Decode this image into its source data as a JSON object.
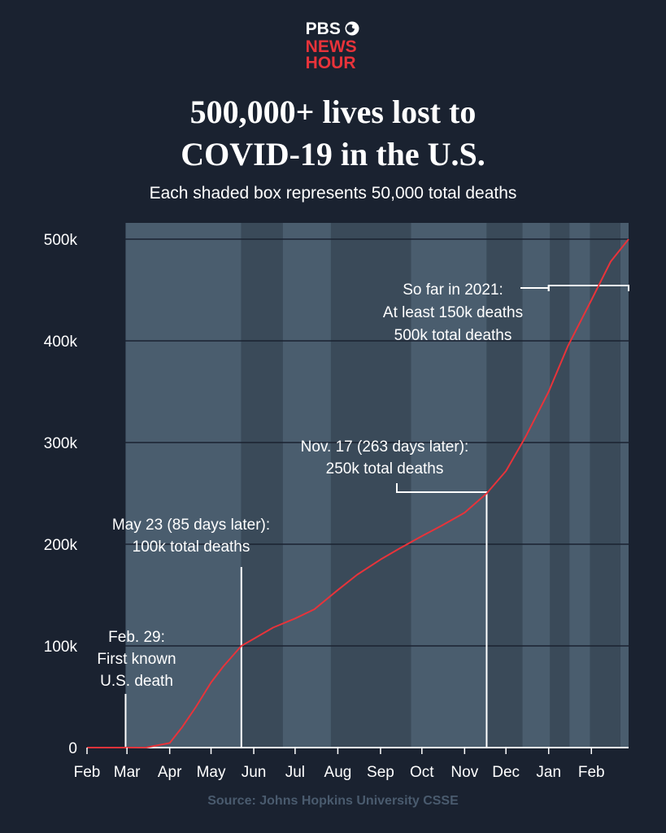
{
  "logo": {
    "line1": "PBS",
    "line2": "NEWS",
    "line3": "HOUR",
    "symbol": "pbs-head-icon"
  },
  "title_line1": "500,000+ lives lost to",
  "title_line2": "COVID-19 in the U.S.",
  "subtitle": "Each shaded box represents 50,000 total deaths",
  "source": "Source: Johns Hopkins University CSSE",
  "colors": {
    "background": "#1a2230",
    "shade_light": "#4a5d6e",
    "shade_dark": "#3a4a59",
    "line": "#e8333a",
    "text": "#ffffff",
    "source": "#4a5b6e"
  },
  "chart_data": {
    "type": "line",
    "title": "500,000+ lives lost to COVID-19 in the U.S.",
    "ylabel": "",
    "xlabel": "",
    "ylim": [
      0,
      500000
    ],
    "y_ticks": [
      0,
      100000,
      200000,
      300000,
      400000,
      500000
    ],
    "y_tick_labels": [
      "0",
      "100k",
      "200k",
      "300k",
      "400k",
      "500k"
    ],
    "x_range": [
      "2020-02-01",
      "2021-02-28"
    ],
    "x_ticks": [
      "2020-02-01",
      "2020-03-01",
      "2020-04-01",
      "2020-05-01",
      "2020-06-01",
      "2020-07-01",
      "2020-08-01",
      "2020-09-01",
      "2020-10-01",
      "2020-11-01",
      "2020-12-01",
      "2021-01-01",
      "2021-02-01"
    ],
    "x_tick_labels": [
      "Feb",
      "Mar",
      "Apr",
      "May",
      "Jun",
      "Jul",
      "Aug",
      "Sep",
      "Oct",
      "Nov",
      "Dec",
      "Jan",
      "Feb"
    ],
    "bands": [
      "2020-02-29",
      "2020-05-23",
      "2020-06-22",
      "2020-07-27",
      "2020-09-23",
      "2020-11-17",
      "2020-12-13",
      "2021-01-02",
      "2021-01-16",
      "2021-01-31",
      "2021-02-22"
    ],
    "series": [
      {
        "points": [
          [
            "2020-02-01",
            0
          ],
          [
            "2020-03-01",
            1
          ],
          [
            "2020-03-15",
            100
          ],
          [
            "2020-04-01",
            4500
          ],
          [
            "2020-04-10",
            20000
          ],
          [
            "2020-04-20",
            40000
          ],
          [
            "2020-05-01",
            64000
          ],
          [
            "2020-05-10",
            80000
          ],
          [
            "2020-05-23",
            100000
          ],
          [
            "2020-06-01",
            107000
          ],
          [
            "2020-06-15",
            118000
          ],
          [
            "2020-07-01",
            127000
          ],
          [
            "2020-07-15",
            136000
          ],
          [
            "2020-08-01",
            155000
          ],
          [
            "2020-08-15",
            170000
          ],
          [
            "2020-09-01",
            185000
          ],
          [
            "2020-09-15",
            196000
          ],
          [
            "2020-10-01",
            208000
          ],
          [
            "2020-10-15",
            218000
          ],
          [
            "2020-11-01",
            231000
          ],
          [
            "2020-11-17",
            250000
          ],
          [
            "2020-12-01",
            272000
          ],
          [
            "2020-12-15",
            305000
          ],
          [
            "2021-01-01",
            350000
          ],
          [
            "2021-01-15",
            395000
          ],
          [
            "2021-02-01",
            440000
          ],
          [
            "2021-02-15",
            478000
          ],
          [
            "2021-02-28",
            500000
          ]
        ]
      }
    ],
    "annotations": [
      {
        "lines": [
          "Feb. 29:",
          "First known",
          "U.S. death"
        ],
        "date": "2020-02-29"
      },
      {
        "lines": [
          "May 23 (85 days later):",
          "100k total deaths"
        ],
        "date": "2020-05-23"
      },
      {
        "lines": [
          "Nov. 17 (263 days later):",
          "250k total deaths"
        ],
        "date": "2020-11-17"
      },
      {
        "lines": [
          "So far in 2021:",
          "At least 150k deaths",
          "500k total deaths"
        ],
        "date_range": [
          "2021-01-01",
          "2021-02-28"
        ]
      }
    ]
  }
}
